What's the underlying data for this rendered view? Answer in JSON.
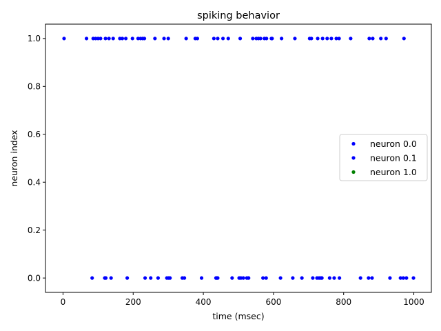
{
  "chart_data": {
    "type": "scatter",
    "title": "spiking behavior",
    "xlabel": "time (msec)",
    "ylabel": "neuron index",
    "xlim": [
      -50,
      1050
    ],
    "ylim": [
      -0.06,
      1.06
    ],
    "xticks": [
      0,
      200,
      400,
      600,
      800,
      1000
    ],
    "xtick_labels": [
      "0",
      "200",
      "400",
      "600",
      "800",
      "1000"
    ],
    "yticks": [
      0.0,
      0.2,
      0.4,
      0.6,
      0.8,
      1.0
    ],
    "ytick_labels": [
      "0.0",
      "0.2",
      "0.4",
      "0.6",
      "0.8",
      "1.0"
    ],
    "grid": false,
    "legend_position": "center-right",
    "series": [
      {
        "name": "neuron 0.0",
        "color": "#0000ff",
        "x": [
          83,
          119,
          122,
          137,
          183,
          234,
          250,
          271,
          296,
          301,
          305,
          340,
          346,
          395,
          436,
          438,
          441,
          482,
          502,
          507,
          514,
          524,
          529,
          570,
          579,
          620,
          655,
          681,
          712,
          724,
          730,
          735,
          738,
          760,
          773,
          788,
          848,
          871,
          881,
          932,
          962,
          970,
          979,
          999
        ],
        "y": [
          0,
          0,
          0,
          0,
          0,
          0,
          0,
          0,
          0,
          0,
          0,
          0,
          0,
          0,
          0,
          0,
          0,
          0,
          0,
          0,
          0,
          0,
          0,
          0,
          0,
          0,
          0,
          0,
          0,
          0,
          0,
          0,
          0,
          0,
          0,
          0,
          0,
          0,
          0,
          0,
          0,
          0,
          0,
          0
        ]
      },
      {
        "name": "neuron 0.1",
        "color": "#0000ff",
        "x": [
          3,
          67,
          86,
          93,
          100,
          107,
          121,
          131,
          143,
          162,
          169,
          179,
          198,
          214,
          221,
          227,
          232,
          262,
          288,
          300,
          351,
          377,
          383,
          430,
          441,
          456,
          471,
          505,
          541,
          551,
          557,
          563,
          574,
          580,
          594,
          596,
          623,
          661,
          703,
          708,
          726,
          740,
          753,
          765,
          779,
          787,
          820,
          873,
          883,
          906,
          921,
          972
        ],
        "y": [
          1,
          1,
          1,
          1,
          1,
          1,
          1,
          1,
          1,
          1,
          1,
          1,
          1,
          1,
          1,
          1,
          1,
          1,
          1,
          1,
          1,
          1,
          1,
          1,
          1,
          1,
          1,
          1,
          1,
          1,
          1,
          1,
          1,
          1,
          1,
          1,
          1,
          1,
          1,
          1,
          1,
          1,
          1,
          1,
          1,
          1,
          1,
          1,
          1,
          1,
          1,
          1
        ]
      },
      {
        "name": "neuron 1.0",
        "color": "#008000",
        "x": [],
        "y": []
      }
    ]
  }
}
